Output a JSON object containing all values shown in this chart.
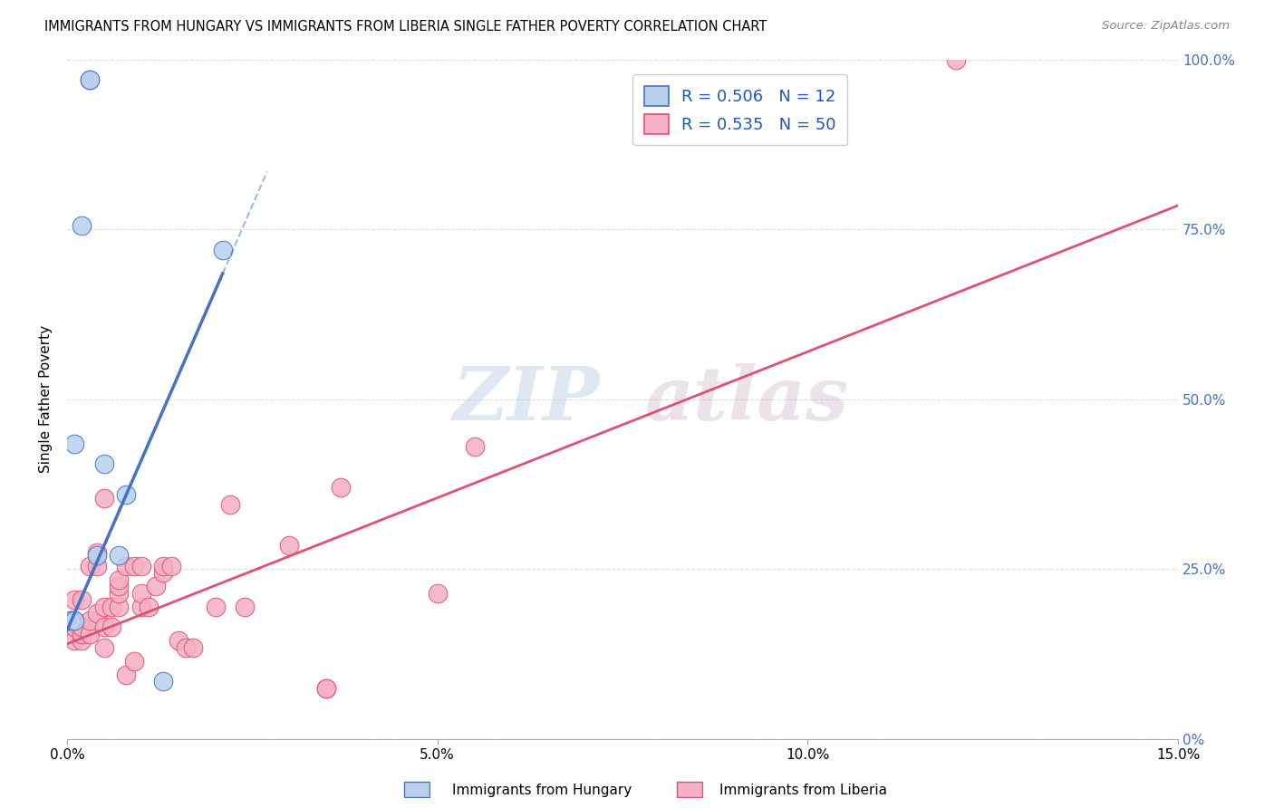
{
  "title": "IMMIGRANTS FROM HUNGARY VS IMMIGRANTS FROM LIBERIA SINGLE FATHER POVERTY CORRELATION CHART",
  "source": "Source: ZipAtlas.com",
  "ylabel": "Single Father Poverty",
  "xlim": [
    0.0,
    0.15
  ],
  "ylim": [
    0.0,
    1.0
  ],
  "hungary_color": "#b8d0ee",
  "hungary_line_color": "#4472c4",
  "liberia_color": "#f4b0c4",
  "liberia_line_color": "#e05070",
  "legend_R_hungary": "R = 0.506",
  "legend_N_hungary": "N = 12",
  "legend_R_liberia": "R = 0.535",
  "legend_N_liberia": "N = 50",
  "watermark_zip": "ZIP",
  "watermark_atlas": "atlas",
  "hungary_x": [
    0.0005,
    0.001,
    0.001,
    0.002,
    0.003,
    0.003,
    0.004,
    0.005,
    0.007,
    0.008,
    0.013,
    0.021
  ],
  "hungary_y": [
    0.175,
    0.175,
    0.435,
    0.755,
    0.97,
    0.97,
    0.27,
    0.405,
    0.27,
    0.36,
    0.085,
    0.72
  ],
  "liberia_x": [
    0.0005,
    0.001,
    0.001,
    0.001,
    0.001,
    0.002,
    0.002,
    0.002,
    0.002,
    0.003,
    0.003,
    0.003,
    0.004,
    0.004,
    0.004,
    0.005,
    0.005,
    0.005,
    0.005,
    0.006,
    0.006,
    0.007,
    0.007,
    0.007,
    0.007,
    0.008,
    0.008,
    0.009,
    0.009,
    0.01,
    0.01,
    0.01,
    0.011,
    0.012,
    0.013,
    0.013,
    0.014,
    0.015,
    0.016,
    0.017,
    0.02,
    0.022,
    0.024,
    0.03,
    0.035,
    0.035,
    0.037,
    0.05,
    0.055,
    0.12
  ],
  "liberia_y": [
    0.175,
    0.145,
    0.165,
    0.175,
    0.205,
    0.145,
    0.155,
    0.165,
    0.205,
    0.155,
    0.175,
    0.255,
    0.185,
    0.255,
    0.275,
    0.135,
    0.165,
    0.195,
    0.355,
    0.165,
    0.195,
    0.195,
    0.215,
    0.225,
    0.235,
    0.095,
    0.255,
    0.115,
    0.255,
    0.195,
    0.215,
    0.255,
    0.195,
    0.225,
    0.245,
    0.255,
    0.255,
    0.145,
    0.135,
    0.135,
    0.195,
    0.345,
    0.195,
    0.285,
    0.075,
    0.075,
    0.37,
    0.215,
    0.43,
    1.0
  ],
  "hungary_reg_line": [
    0.0,
    0.021,
    0.15,
    0.19
  ],
  "hungary_reg_slope": 25.0,
  "hungary_reg_intercept": 0.16,
  "liberia_reg_slope": 4.3,
  "liberia_reg_intercept": 0.14
}
